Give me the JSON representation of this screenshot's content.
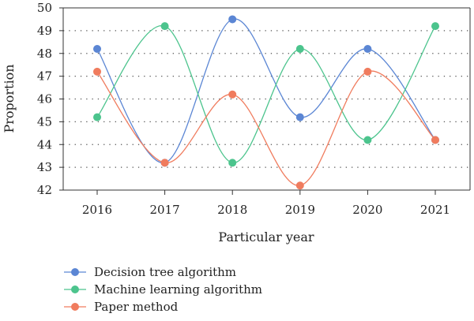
{
  "chart_data": {
    "type": "line",
    "xlabel": "Particular year",
    "ylabel": "Proportion",
    "categories": [
      "2016",
      "2017",
      "2018",
      "2019",
      "2020",
      "2021"
    ],
    "ylim": [
      42,
      50
    ],
    "yticks": [
      42,
      43,
      44,
      45,
      46,
      47,
      48,
      49,
      50
    ],
    "grid": "horizontal dotted",
    "legend_position": "bottom-left",
    "series": [
      {
        "name": "Decision tree algorithm",
        "values": [
          48.2,
          43.2,
          49.5,
          45.2,
          48.2,
          44.2
        ],
        "color": "#5b86d4"
      },
      {
        "name": "Machine learning algorithm",
        "values": [
          45.2,
          49.2,
          43.2,
          48.2,
          44.2,
          49.2
        ],
        "color": "#4cc48d"
      },
      {
        "name": "Paper method",
        "values": [
          47.2,
          43.2,
          46.2,
          42.2,
          47.2,
          44.2
        ],
        "color": "#f07c5e"
      }
    ]
  }
}
